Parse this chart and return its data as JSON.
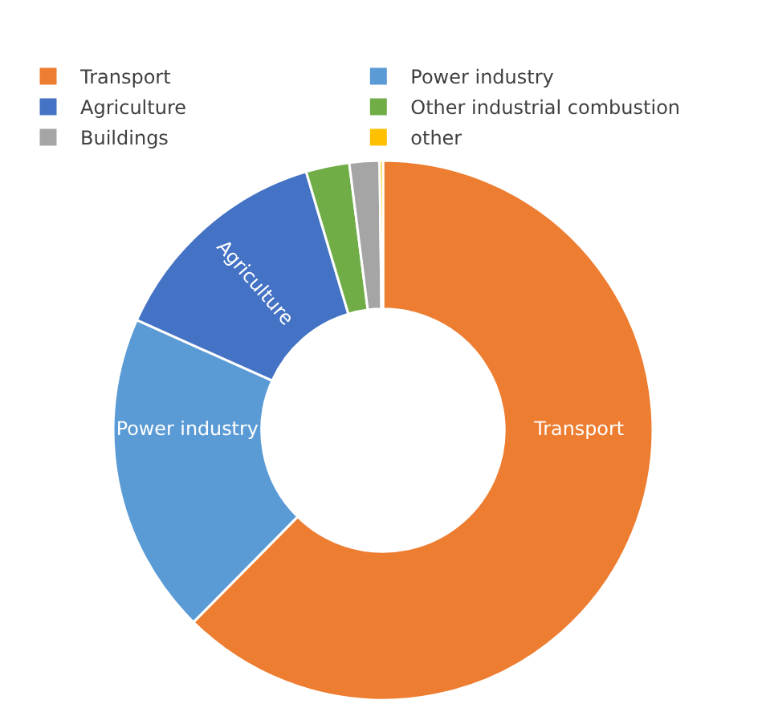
{
  "chart_data": {
    "type": "donut",
    "categories": [
      "Transport",
      "Power industry",
      "Agriculture",
      "Other industrial combustion",
      "Buildings",
      "other"
    ],
    "values": [
      62.4,
      19.3,
      13.7,
      2.6,
      1.8,
      0.2
    ],
    "colors": [
      "#ed7d31",
      "#5b9bd5",
      "#4472c4",
      "#70ad47",
      "#a5a5a5",
      "#ffc000"
    ],
    "legend": "top"
  }
}
